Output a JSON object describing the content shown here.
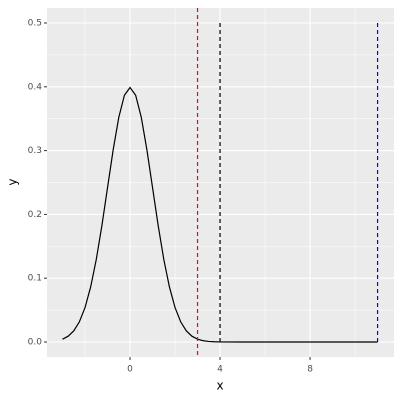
{
  "chart_data": {
    "type": "line",
    "x_label": "x",
    "y_label": "y",
    "x": [
      -3,
      -2.75,
      -2.5,
      -2.25,
      -2,
      -1.75,
      -1.5,
      -1.25,
      -1,
      -0.75,
      -0.5,
      -0.25,
      0,
      0.25,
      0.5,
      0.75,
      1,
      1.25,
      1.5,
      1.75,
      2,
      2.25,
      2.5,
      2.75,
      3,
      3.25,
      3.5,
      3.75,
      4,
      5,
      6,
      7,
      8,
      9,
      10,
      11
    ],
    "series": [
      {
        "color": "#000000",
        "values": [
          0.0044,
          0.0091,
          0.0175,
          0.0317,
          0.054,
          0.0863,
          0.1295,
          0.1826,
          0.242,
          0.3011,
          0.3521,
          0.3867,
          0.3989,
          0.3867,
          0.3521,
          0.3011,
          0.242,
          0.1826,
          0.1295,
          0.0863,
          0.054,
          0.0317,
          0.0175,
          0.0091,
          0.0044,
          0.002,
          0.0009,
          0.0004,
          0.0001,
          0,
          0,
          0,
          0,
          0,
          0,
          0
        ]
      }
    ],
    "vlines": [
      {
        "x": 3,
        "color": "#ff0000",
        "full": true
      },
      {
        "x": 4,
        "color": "#000000",
        "ymin": 0,
        "ymax": 0.5
      },
      {
        "x": 11,
        "color": "#0000ff",
        "ymin": 0,
        "ymax": 0.5
      }
    ],
    "xlim": [
      -3.69,
      11.73
    ],
    "ylim": [
      -0.0235,
      0.5235
    ],
    "xticks": [
      0,
      4,
      8
    ],
    "yticks": [
      {
        "value": 0,
        "label": "0.0"
      },
      {
        "value": 0.1,
        "label": "0.1"
      },
      {
        "value": 0.2,
        "label": "0.2"
      },
      {
        "value": 0.3,
        "label": "0.3"
      },
      {
        "value": 0.4,
        "label": "0.4"
      },
      {
        "value": 0.5,
        "label": "0.5"
      }
    ],
    "x_minor_grid": [
      -2,
      2,
      6,
      10
    ],
    "y_minor_grid": [
      0.05,
      0.15,
      0.25,
      0.35,
      0.45
    ],
    "grid": true
  }
}
